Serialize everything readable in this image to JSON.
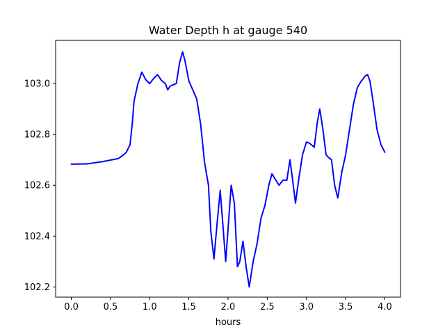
{
  "chart_data": {
    "type": "line",
    "title": "Water Depth h at gauge 540",
    "xlabel": "hours",
    "ylabel": "",
    "xlim": [
      -0.2,
      4.2
    ],
    "ylim": [
      102.16,
      103.17
    ],
    "xticks": [
      0.0,
      0.5,
      1.0,
      1.5,
      2.0,
      2.5,
      3.0,
      3.5,
      4.0
    ],
    "xtick_labels": [
      "0.0",
      "0.5",
      "1.0",
      "1.5",
      "2.0",
      "2.5",
      "3.0",
      "3.5",
      "4.0"
    ],
    "yticks": [
      102.2,
      102.4,
      102.6,
      102.8,
      103.0
    ],
    "ytick_labels": [
      "102.2",
      "102.4",
      "102.6",
      "102.8",
      "103.0"
    ],
    "grid": false,
    "line_color": "#0000ff",
    "series": [
      {
        "x": [
          0.0,
          0.2,
          0.4,
          0.6,
          0.65,
          0.7,
          0.75,
          0.78,
          0.8,
          0.85,
          0.9,
          0.95,
          1.0,
          1.05,
          1.1,
          1.15,
          1.2,
          1.23,
          1.26,
          1.3,
          1.34,
          1.38,
          1.42,
          1.45,
          1.5,
          1.55,
          1.6,
          1.65,
          1.7,
          1.75,
          1.78,
          1.82,
          1.86,
          1.9,
          1.93,
          1.97,
          2.0,
          2.04,
          2.08,
          2.12,
          2.15,
          2.19,
          2.23,
          2.27,
          2.32,
          2.37,
          2.42,
          2.47,
          2.52,
          2.56,
          2.6,
          2.65,
          2.7,
          2.75,
          2.79,
          2.82,
          2.86,
          2.9,
          2.95,
          3.0,
          3.04,
          3.1,
          3.14,
          3.17,
          3.21,
          3.25,
          3.28,
          3.32,
          3.36,
          3.4,
          3.45,
          3.5,
          3.55,
          3.6,
          3.65,
          3.7,
          3.75,
          3.78,
          3.81,
          3.85,
          3.9,
          3.95,
          4.0
        ],
        "y": [
          102.683,
          102.684,
          102.693,
          102.705,
          102.716,
          102.729,
          102.76,
          102.85,
          102.93,
          103.0,
          103.045,
          103.015,
          103.0,
          103.02,
          103.035,
          103.012,
          103.0,
          102.975,
          102.99,
          102.995,
          103.0,
          103.08,
          103.125,
          103.09,
          103.01,
          102.975,
          102.94,
          102.84,
          102.69,
          102.6,
          102.42,
          102.31,
          102.45,
          102.58,
          102.46,
          102.3,
          102.43,
          102.6,
          102.53,
          102.28,
          102.3,
          102.38,
          102.28,
          102.2,
          102.3,
          102.37,
          102.47,
          102.52,
          102.6,
          102.645,
          102.625,
          102.6,
          102.62,
          102.62,
          102.7,
          102.63,
          102.53,
          102.62,
          102.72,
          102.77,
          102.765,
          102.75,
          102.85,
          102.9,
          102.82,
          102.72,
          102.71,
          102.7,
          102.6,
          102.55,
          102.65,
          102.72,
          102.82,
          102.92,
          102.985,
          103.01,
          103.03,
          103.035,
          103.01,
          102.93,
          102.82,
          102.76,
          102.73
        ]
      }
    ]
  }
}
